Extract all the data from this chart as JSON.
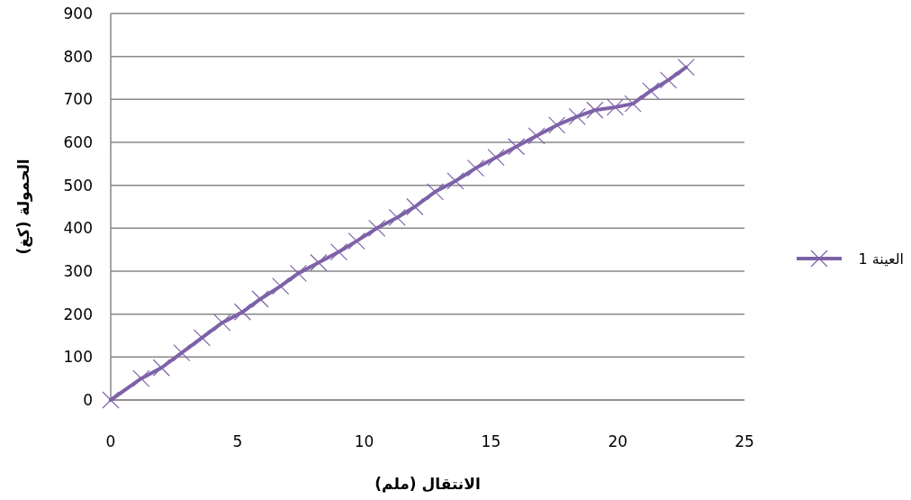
{
  "chart_data": {
    "type": "line",
    "x": [
      0,
      1.2,
      2,
      2.8,
      3.6,
      4.4,
      5.2,
      5.9,
      6.7,
      7.4,
      8.2,
      9,
      9.7,
      10.5,
      11.3,
      12,
      12.8,
      13.6,
      14.4,
      15.2,
      16,
      16.8,
      17.6,
      18.4,
      19.1,
      19.9,
      20.6,
      21.3,
      22,
      22.7
    ],
    "series": [
      {
        "name": "العينة 1",
        "color": "#7e62a8",
        "values": [
          0,
          50,
          75,
          110,
          145,
          180,
          205,
          235,
          265,
          295,
          320,
          345,
          370,
          400,
          425,
          450,
          485,
          510,
          540,
          565,
          590,
          615,
          640,
          660,
          675,
          682,
          690,
          720,
          745,
          775
        ]
      }
    ],
    "xlabel": "الانتقال (ملم)",
    "ylabel": "الحمولة (كغ)",
    "xlim": [
      0,
      25
    ],
    "ylim": [
      0,
      900
    ],
    "xticks": [
      0,
      5,
      10,
      15,
      20,
      25
    ],
    "yticks": [
      0,
      100,
      200,
      300,
      400,
      500,
      600,
      700,
      800,
      900
    ],
    "grid": "y",
    "legend": "right",
    "marker": "cross",
    "line_style": "solid"
  }
}
